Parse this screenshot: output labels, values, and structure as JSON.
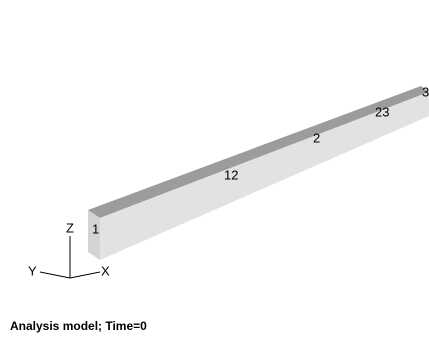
{
  "viewport": {
    "node_labels": [
      "1",
      "12",
      "2",
      "23",
      "3"
    ]
  },
  "triad": {
    "z": "Z",
    "y": "Y",
    "x": "X"
  },
  "caption": "Analysis model; Time=0"
}
